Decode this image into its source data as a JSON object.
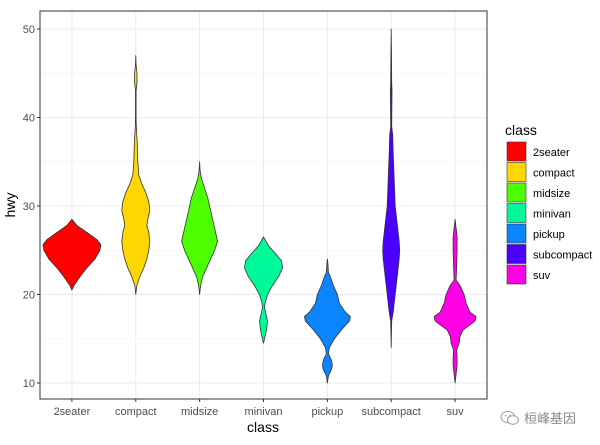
{
  "chart_data": {
    "type": "violin",
    "title": "",
    "xlabel": "class",
    "ylabel": "hwy",
    "ylim": [
      8,
      52
    ],
    "yticks": [
      10,
      20,
      30,
      40,
      50
    ],
    "grid": true,
    "legend_position": "right",
    "legend_title": "class",
    "categories": [
      "2seater",
      "compact",
      "midsize",
      "minivan",
      "pickup",
      "subcompact",
      "suv"
    ],
    "colors": {
      "2seater": "#FF0000",
      "compact": "#FFD700",
      "midsize": "#4CFF00",
      "minivan": "#00FA9A",
      "pickup": "#0A84FF",
      "subcompact": "#4B00FF",
      "suv": "#FF00E6"
    },
    "series": [
      {
        "name": "2seater",
        "min": 20.5,
        "max": 28.5,
        "profile": [
          [
            20.5,
            0
          ],
          [
            21,
            2
          ],
          [
            22,
            8
          ],
          [
            23,
            15
          ],
          [
            24,
            23
          ],
          [
            25,
            28
          ],
          [
            25.6,
            29
          ],
          [
            26.2,
            25
          ],
          [
            27,
            15
          ],
          [
            27.8,
            5
          ],
          [
            28.5,
            0
          ]
        ]
      },
      {
        "name": "compact",
        "min": 20,
        "max": 47,
        "profile": [
          [
            20,
            0
          ],
          [
            21,
            1
          ],
          [
            22,
            4
          ],
          [
            23,
            8
          ],
          [
            24,
            11
          ],
          [
            25,
            13
          ],
          [
            26,
            14
          ],
          [
            27,
            13
          ],
          [
            27.8,
            11
          ],
          [
            28.5,
            12
          ],
          [
            29.5,
            14
          ],
          [
            30.5,
            13
          ],
          [
            31.5,
            10
          ],
          [
            32.5,
            6
          ],
          [
            33.5,
            3
          ],
          [
            35,
            2
          ],
          [
            37,
            1.5
          ],
          [
            38,
            1
          ],
          [
            39,
            0.5
          ],
          [
            40,
            0.3
          ],
          [
            43,
            0.3
          ],
          [
            44,
            1.2
          ],
          [
            45,
            1.2
          ],
          [
            46,
            0.3
          ],
          [
            47,
            0
          ]
        ]
      },
      {
        "name": "midsize",
        "min": 20,
        "max": 35,
        "profile": [
          [
            20,
            0
          ],
          [
            21,
            1
          ],
          [
            22,
            3
          ],
          [
            23,
            7
          ],
          [
            24,
            11
          ],
          [
            25,
            15
          ],
          [
            26,
            18
          ],
          [
            27,
            16
          ],
          [
            28,
            14
          ],
          [
            29,
            12
          ],
          [
            30,
            10
          ],
          [
            31,
            8
          ],
          [
            32,
            5
          ],
          [
            33,
            2
          ],
          [
            34,
            0.5
          ],
          [
            35,
            0
          ]
        ]
      },
      {
        "name": "minivan",
        "min": 14.5,
        "max": 26.5,
        "profile": [
          [
            14.5,
            0
          ],
          [
            15,
            1
          ],
          [
            16,
            3
          ],
          [
            17,
            4
          ],
          [
            18,
            2
          ],
          [
            18.5,
            1
          ],
          [
            19,
            1.5
          ],
          [
            20,
            4
          ],
          [
            21,
            9
          ],
          [
            22,
            15
          ],
          [
            23,
            19
          ],
          [
            23.8,
            18
          ],
          [
            24.5,
            13
          ],
          [
            25.5,
            5
          ],
          [
            26.5,
            0
          ]
        ]
      },
      {
        "name": "pickup",
        "min": 10,
        "max": 24,
        "profile": [
          [
            10,
            0
          ],
          [
            10.8,
            1
          ],
          [
            11.5,
            4
          ],
          [
            12,
            5
          ],
          [
            12.6,
            4
          ],
          [
            13.3,
            1
          ],
          [
            14,
            2
          ],
          [
            15,
            7
          ],
          [
            16,
            14
          ],
          [
            17,
            22
          ],
          [
            17.5,
            23
          ],
          [
            18,
            18
          ],
          [
            19,
            12
          ],
          [
            20,
            10
          ],
          [
            21,
            6
          ],
          [
            22,
            3
          ],
          [
            22.5,
            1
          ],
          [
            23.5,
            0.5
          ],
          [
            24,
            0
          ]
        ]
      },
      {
        "name": "subcompact",
        "min": 14,
        "max": 50,
        "profile": [
          [
            14,
            0
          ],
          [
            17,
            0.5
          ],
          [
            18,
            2
          ],
          [
            20,
            4
          ],
          [
            22,
            6
          ],
          [
            24,
            8
          ],
          [
            25,
            8.5
          ],
          [
            26,
            8
          ],
          [
            28,
            6
          ],
          [
            30,
            4
          ],
          [
            33,
            3
          ],
          [
            36,
            2
          ],
          [
            38,
            1.5
          ],
          [
            39,
            0.5
          ],
          [
            40,
            0.6
          ],
          [
            43,
            0.8
          ],
          [
            44,
            0.5
          ],
          [
            47,
            0.3
          ],
          [
            50,
            0
          ]
        ]
      },
      {
        "name": "suv",
        "min": 10,
        "max": 28.5,
        "profile": [
          [
            10,
            0
          ],
          [
            11,
            1
          ],
          [
            12,
            2
          ],
          [
            13,
            2
          ],
          [
            13.7,
            1.5
          ],
          [
            14.5,
            4
          ],
          [
            15.3,
            5
          ],
          [
            16,
            8
          ],
          [
            17,
            20
          ],
          [
            17.5,
            21
          ],
          [
            18,
            15
          ],
          [
            19,
            11
          ],
          [
            20,
            9
          ],
          [
            21,
            5
          ],
          [
            21.6,
            1
          ],
          [
            23,
            1.5
          ],
          [
            25,
            2
          ],
          [
            26.5,
            2
          ],
          [
            27.5,
            1
          ],
          [
            28.5,
            0
          ]
        ]
      }
    ]
  },
  "watermark": {
    "text": "桓峰基因",
    "icon": "wechat-icon"
  }
}
